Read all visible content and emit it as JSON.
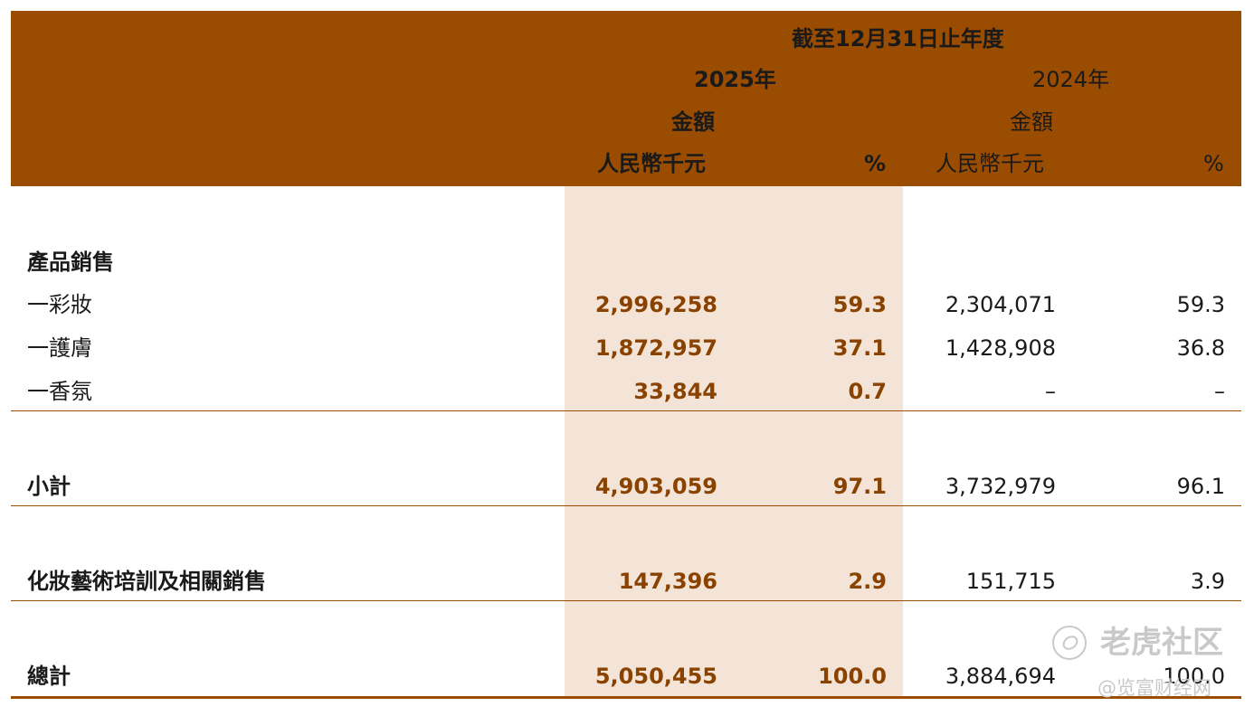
{
  "header": {
    "period": "截至12月31日止年度",
    "year_current": "2025年",
    "year_prior": "2024年",
    "amount_label_current": "金額",
    "amount_label_prior": "金額",
    "unit_current": "人民幣千元",
    "unit_prior": "人民幣千元",
    "pct_current": "%",
    "pct_prior": "%"
  },
  "rows": [
    {
      "label": "產品銷售",
      "amt25": "",
      "pct25": "",
      "amt24": "",
      "pct24": ""
    },
    {
      "label": "一彩妝",
      "amt25": "2,996,258",
      "pct25": "59.3",
      "amt24": "2,304,071",
      "pct24": "59.3"
    },
    {
      "label": "一護膚",
      "amt25": "1,872,957",
      "pct25": "37.1",
      "amt24": "1,428,908",
      "pct24": "36.8"
    },
    {
      "label": "一香氛",
      "amt25": "33,844",
      "pct25": "0.7",
      "amt24": "–",
      "pct24": "–"
    },
    {
      "label": "小計",
      "amt25": "4,903,059",
      "pct25": "97.1",
      "amt24": "3,732,979",
      "pct24": "96.1"
    },
    {
      "label": "化妝藝術培訓及相關銷售",
      "amt25": "147,396",
      "pct25": "2.9",
      "amt24": "151,715",
      "pct24": "3.9"
    },
    {
      "label": "總計",
      "amt25": "5,050,455",
      "pct25": "100.0",
      "amt24": "3,884,694",
      "pct24": "100.0"
    }
  ],
  "watermark": {
    "brand": "老虎社区",
    "source": "@览富财经网"
  },
  "colors": {
    "header_bg": "#9a4c00",
    "current_year_shade": "#f3e4d7",
    "current_year_text": "#8a4200"
  }
}
